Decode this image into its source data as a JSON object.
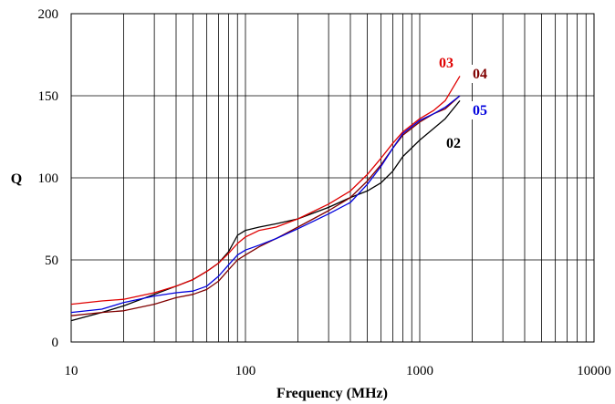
{
  "chart_data": {
    "type": "line",
    "title": "",
    "xlabel": "Frequency (MHz)",
    "ylabel": "Q",
    "x_scale": "log",
    "xlim": [
      10,
      10000
    ],
    "ylim": [
      0,
      200
    ],
    "x_ticks": [
      "10",
      "100",
      "1000",
      "10000"
    ],
    "y_ticks": [
      "0",
      "50",
      "100",
      "150",
      "200"
    ],
    "grid": "vertical log gridlines, horizontal gridlines at 50-unit steps",
    "legend": "inline labels near line ends (top-right)",
    "series": [
      {
        "name": "02",
        "color": "#000000",
        "x": [
          10,
          15,
          20,
          30,
          40,
          50,
          60,
          70,
          80,
          90,
          100,
          120,
          150,
          200,
          300,
          400,
          500,
          600,
          700,
          800,
          1000,
          1200,
          1400,
          1700
        ],
        "y": [
          13,
          18,
          22,
          29,
          34,
          38,
          43,
          48,
          55,
          65,
          68,
          70,
          72,
          75,
          82,
          88,
          92,
          97,
          104,
          113,
          123,
          130,
          136,
          147
        ]
      },
      {
        "name": "03",
        "color": "#e00000",
        "x": [
          10,
          15,
          20,
          30,
          40,
          50,
          60,
          70,
          80,
          90,
          100,
          120,
          150,
          200,
          300,
          400,
          500,
          600,
          700,
          800,
          1000,
          1200,
          1400,
          1700
        ],
        "y": [
          23,
          25,
          26,
          30,
          34,
          38,
          43,
          48,
          54,
          60,
          64,
          68,
          70,
          75,
          84,
          92,
          102,
          112,
          121,
          128,
          136,
          141,
          147,
          162
        ]
      },
      {
        "name": "04",
        "color": "#800000",
        "x": [
          10,
          15,
          20,
          30,
          40,
          50,
          60,
          70,
          80,
          90,
          100,
          120,
          150,
          200,
          300,
          400,
          500,
          600,
          700,
          800,
          1000,
          1200,
          1400,
          1700
        ],
        "y": [
          16,
          18,
          19,
          23,
          27,
          29,
          32,
          37,
          44,
          50,
          53,
          58,
          63,
          70,
          80,
          88,
          98,
          108,
          118,
          126,
          134,
          139,
          142,
          150
        ]
      },
      {
        "name": "05",
        "color": "#0000dd",
        "x": [
          10,
          15,
          20,
          30,
          40,
          50,
          60,
          70,
          80,
          90,
          100,
          120,
          150,
          200,
          300,
          400,
          500,
          600,
          700,
          800,
          1000,
          1200,
          1400,
          1700
        ],
        "y": [
          18,
          20,
          24,
          28,
          30,
          31,
          34,
          40,
          47,
          53,
          56,
          59,
          63,
          69,
          78,
          85,
          96,
          107,
          118,
          127,
          135,
          139,
          143,
          150
        ]
      }
    ]
  }
}
